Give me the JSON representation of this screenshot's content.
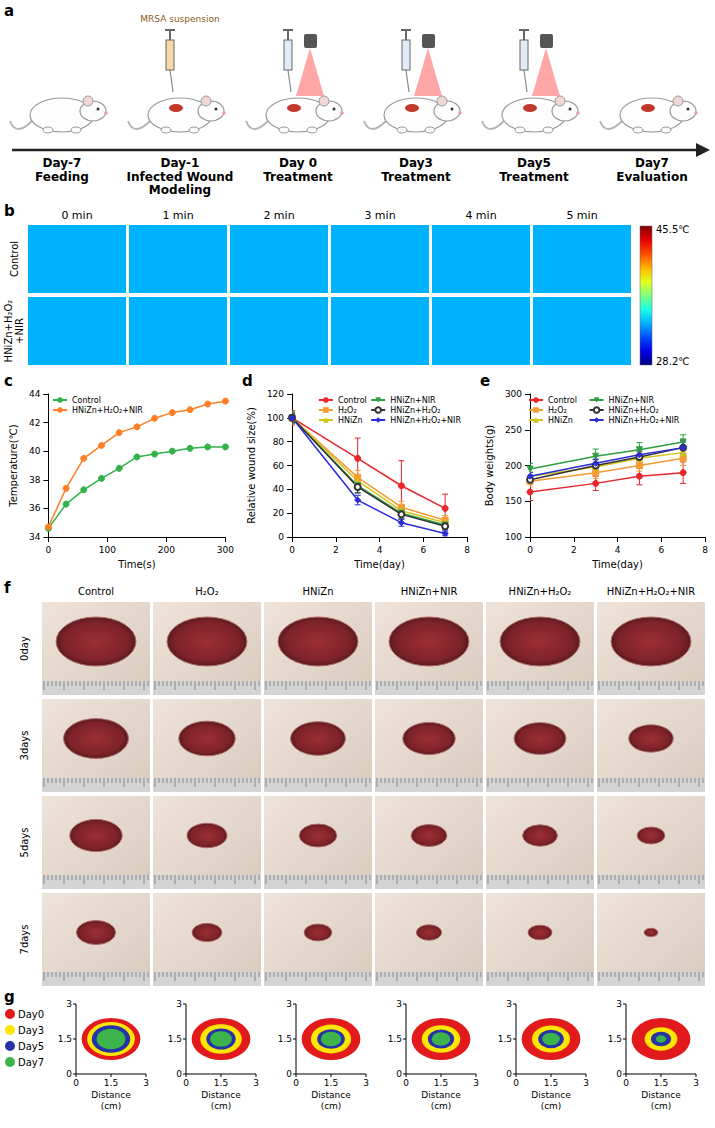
{
  "timeline": {
    "label": "a",
    "injection_label": "MRSA suspension",
    "steps": [
      {
        "day": "Day-7",
        "label": "Feeding"
      },
      {
        "day": "Day-1",
        "label": "Infected Wound Modeling"
      },
      {
        "day": "Day 0",
        "label": "Treatment"
      },
      {
        "day": "Day3",
        "label": "Treatment"
      },
      {
        "day": "Day5",
        "label": "Treatment"
      },
      {
        "day": "Day7",
        "label": "Evaluation"
      }
    ]
  },
  "thermal": {
    "label": "b",
    "times": [
      "0 min",
      "1 min",
      "2 min",
      "3 min",
      "4 min",
      "5 min"
    ],
    "rows": [
      "Control",
      "HNiZn+H₂O₂+NIR"
    ],
    "colorbar": {
      "max": {
        "value": 45.5,
        "label": "45.5℃"
      },
      "min": {
        "value": 28.2,
        "label": "28.2℃"
      }
    }
  },
  "chart_data": [
    {
      "label": "c",
      "type": "line",
      "xlabel": "Time(s)",
      "ylabel": "Temperature(℃)",
      "x": [
        0,
        30,
        60,
        90,
        120,
        150,
        180,
        210,
        240,
        270,
        300
      ],
      "xlim": [
        0,
        300
      ],
      "xticks": [
        0,
        100,
        200,
        300
      ],
      "ylim": [
        34,
        44
      ],
      "yticks": [
        34,
        36,
        38,
        40,
        42,
        44
      ],
      "grid": false,
      "legend": "upper left",
      "series": [
        {
          "name": "Control",
          "color": "#33b24a",
          "marker": "circle",
          "values": [
            34.6,
            36.3,
            37.3,
            38.1,
            38.8,
            39.6,
            39.8,
            40.0,
            40.2,
            40.3,
            40.3
          ]
        },
        {
          "name": "HNiZn+H₂O₂+NIR",
          "color": "#ff7f27",
          "marker": "circle",
          "values": [
            34.7,
            37.4,
            39.5,
            40.4,
            41.3,
            41.7,
            42.3,
            42.7,
            42.9,
            43.3,
            43.5
          ]
        }
      ]
    },
    {
      "label": "d",
      "type": "line",
      "xlabel": "Time(day)",
      "ylabel": "Relative wound size(%)",
      "x": [
        0,
        3,
        5,
        7
      ],
      "xlim": [
        0,
        8
      ],
      "xticks": [
        0,
        2,
        4,
        6,
        8
      ],
      "ylim": [
        0,
        120
      ],
      "yticks": [
        0,
        20,
        40,
        60,
        80,
        100,
        120
      ],
      "grid": false,
      "legend": "upper right",
      "series": [
        {
          "name": "Control",
          "color": "#e8262b",
          "marker": "circle",
          "values": [
            100,
            66,
            43,
            24
          ],
          "errors": [
            6,
            17,
            21,
            12
          ]
        },
        {
          "name": "H₂O₂",
          "color": "#f39c33",
          "marker": "square",
          "values": [
            100,
            50,
            25,
            14
          ],
          "errors": [
            4,
            6,
            5,
            4
          ]
        },
        {
          "name": "HNiZn",
          "color": "#d4c21a",
          "marker": "triangle",
          "values": [
            100,
            47,
            22,
            12
          ],
          "errors": [
            5,
            5,
            4,
            3
          ]
        },
        {
          "name": "HNiZn+NIR",
          "color": "#2ea043",
          "marker": "triangle_down",
          "values": [
            100,
            43,
            20,
            10
          ],
          "errors": [
            5,
            6,
            4,
            3
          ]
        },
        {
          "name": "HNiZn+H₂O₂",
          "color": "#333333",
          "marker": "open_circle",
          "values": [
            100,
            42,
            19,
            9
          ],
          "errors": [
            4,
            5,
            4,
            3
          ]
        },
        {
          "name": "HNiZn+H₂O₂+NIR",
          "color": "#2b2bd9",
          "marker": "diamond",
          "values": [
            100,
            31,
            12,
            3
          ],
          "errors": [
            3,
            4,
            3,
            2
          ]
        }
      ]
    },
    {
      "label": "e",
      "type": "line",
      "xlabel": "Time(day)",
      "ylabel": "Body weights(g)",
      "x": [
        0,
        3,
        5,
        7
      ],
      "xlim": [
        0,
        8
      ],
      "xticks": [
        0,
        2,
        4,
        6,
        8
      ],
      "ylim": [
        100,
        300
      ],
      "yticks": [
        100,
        150,
        200,
        250,
        300
      ],
      "grid": false,
      "legend": "upper left",
      "series": [
        {
          "name": "Control",
          "color": "#e8262b",
          "marker": "circle",
          "values": [
            163,
            175,
            185,
            190
          ],
          "errors": [
            12,
            10,
            12,
            15
          ]
        },
        {
          "name": "H₂O₂",
          "color": "#f39c33",
          "marker": "square",
          "values": [
            178,
            190,
            200,
            210
          ],
          "errors": [
            8,
            8,
            8,
            10
          ]
        },
        {
          "name": "HNiZn",
          "color": "#d4c21a",
          "marker": "triangle",
          "values": [
            185,
            198,
            210,
            218
          ],
          "errors": [
            6,
            7,
            8,
            8
          ]
        },
        {
          "name": "HNiZn+NIR",
          "color": "#2ea043",
          "marker": "triangle_down",
          "values": [
            195,
            213,
            222,
            233
          ],
          "errors": [
            8,
            10,
            10,
            10
          ]
        },
        {
          "name": "HNiZn+H₂O₂",
          "color": "#333333",
          "marker": "open_circle",
          "values": [
            180,
            200,
            212,
            225
          ],
          "errors": [
            6,
            8,
            8,
            10
          ]
        },
        {
          "name": "HNiZn+H₂O₂+NIR",
          "color": "#2b2bd9",
          "marker": "diamond",
          "values": [
            185,
            203,
            215,
            225
          ],
          "errors": [
            5,
            6,
            7,
            8
          ]
        }
      ]
    }
  ],
  "photos": {
    "label": "f",
    "groups": [
      "Control",
      "H₂O₂",
      "HNiZn",
      "HNiZn+NIR",
      "HNiZn+H₂O₂",
      "HNiZn+H₂O₂+NIR"
    ],
    "days": [
      "0day",
      "3days",
      "5days",
      "7days"
    ]
  },
  "traces": {
    "label": "g",
    "legend": [
      {
        "name": "Day0",
        "color": "#e31a1c"
      },
      {
        "name": "Day3",
        "color": "#ffe600"
      },
      {
        "name": "Day5",
        "color": "#2532a8"
      },
      {
        "name": "Day7",
        "color": "#3cb44b"
      }
    ],
    "xlabel": "Distance (cm)",
    "xlim": [
      0,
      3
    ],
    "xticks": [
      0,
      1.5,
      3
    ],
    "ylim": [
      0,
      3
    ],
    "yticks": [
      0,
      1.5,
      3
    ]
  }
}
